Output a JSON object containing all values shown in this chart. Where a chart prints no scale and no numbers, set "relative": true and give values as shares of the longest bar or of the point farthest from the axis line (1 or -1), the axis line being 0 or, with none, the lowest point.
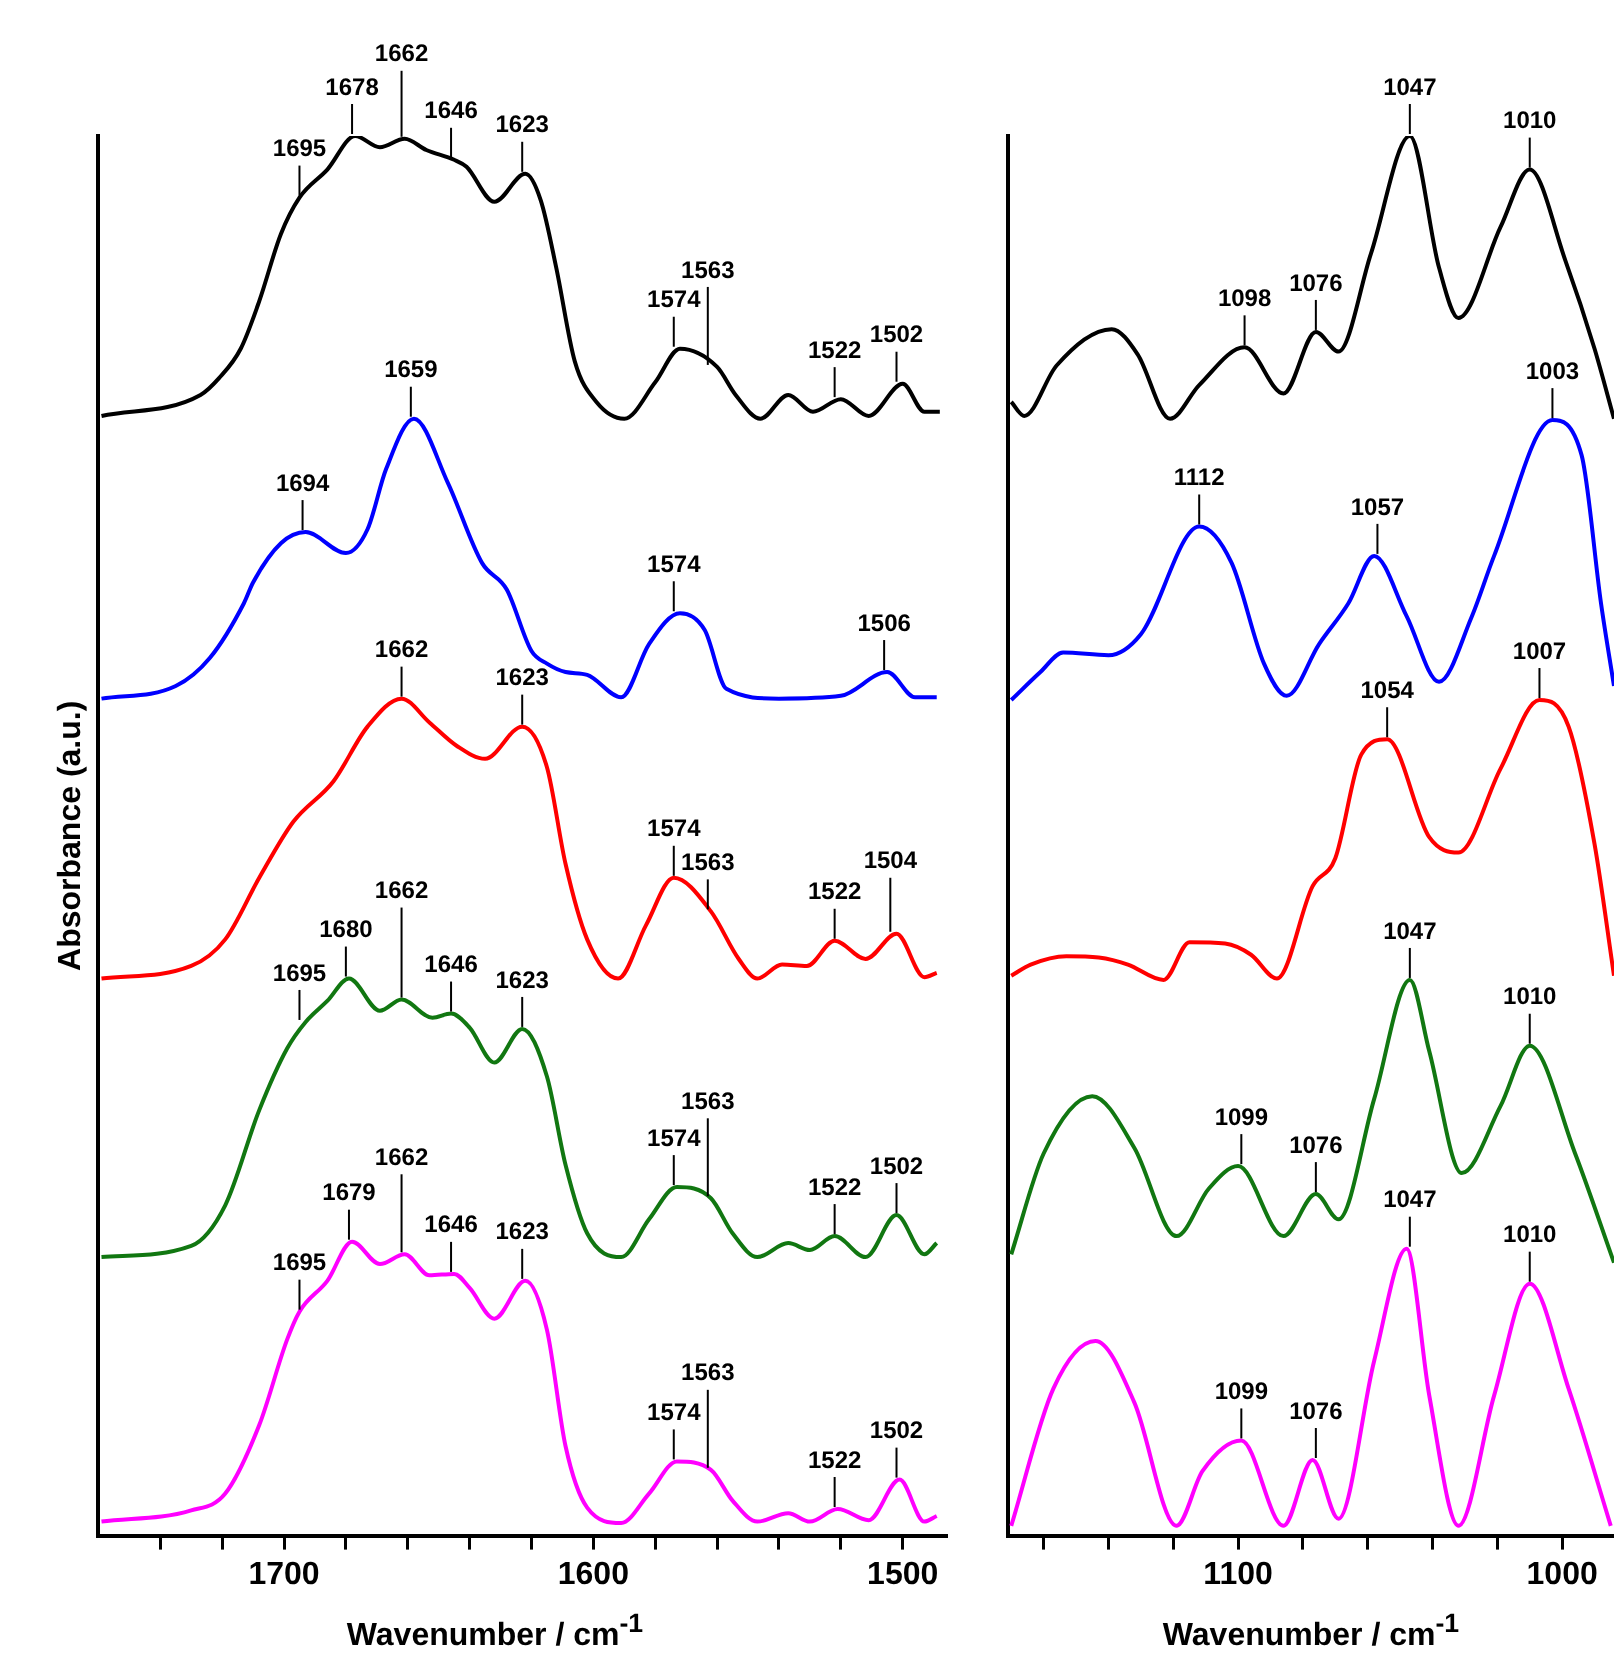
{
  "chart_data": [
    {
      "type": "line",
      "relative": true,
      "tick_labels": "x",
      "xlabel": "Wavenumber / cm$^{-1}$",
      "ylabel": "Absorbance (a.u.)",
      "xlim": [
        1760,
        1486
      ],
      "xticks": [
        {
          "value": 1740,
          "label": null
        },
        {
          "value": 1720,
          "label": null
        },
        1700,
        {
          "value": 1680,
          "label": null
        },
        {
          "value": 1660,
          "label": null
        },
        {
          "value": 1640,
          "label": null
        },
        {
          "value": 1620,
          "label": null
        },
        1600,
        {
          "value": 1580,
          "label": null
        },
        {
          "value": 1560,
          "label": null
        },
        {
          "value": 1540,
          "label": null
        },
        {
          "value": 1520,
          "label": null
        },
        1500
      ],
      "series": [
        {
          "color": "#000000",
          "x": [
            1759,
            1727,
            1721,
            1714,
            1708,
            1701,
            1695,
            1686,
            1677,
            1669,
            1661,
            1654,
            1645,
            1641,
            1632,
            1622,
            1617,
            1612,
            1606,
            1599,
            1590,
            1580,
            1572,
            1560,
            1554,
            1546,
            1537,
            1529,
            1520,
            1511,
            1500,
            1493,
            1488
          ],
          "values": [
            0.8,
            0.815,
            0.827,
            0.848,
            0.882,
            0.93,
            0.956,
            0.976,
            1.0,
            0.992,
            0.998,
            0.99,
            0.983,
            0.978,
            0.953,
            0.973,
            0.954,
            0.906,
            0.839,
            0.81,
            0.798,
            0.824,
            0.848,
            0.835,
            0.815,
            0.798,
            0.815,
            0.803,
            0.812,
            0.8,
            0.823,
            0.803,
            0.803
          ]
        },
        {
          "color": "#0000ff",
          "x": [
            1759,
            1735,
            1724,
            1713,
            1710,
            1701,
            1693,
            1680,
            1673,
            1667,
            1658,
            1647,
            1636,
            1628,
            1620,
            1615,
            1609,
            1602,
            1591,
            1582,
            1572,
            1564,
            1557,
            1540,
            1520,
            1505,
            1496,
            1489
          ],
          "values": [
            0.598,
            0.607,
            0.627,
            0.666,
            0.681,
            0.709,
            0.717,
            0.702,
            0.719,
            0.762,
            0.798,
            0.752,
            0.695,
            0.676,
            0.632,
            0.623,
            0.617,
            0.615,
            0.599,
            0.637,
            0.659,
            0.647,
            0.605,
            0.598,
            0.6,
            0.617,
            0.599,
            0.599
          ]
        },
        {
          "color": "#ff0000",
          "x": [
            1759,
            1730,
            1719,
            1708,
            1697,
            1684,
            1673,
            1662,
            1653,
            1644,
            1635,
            1623,
            1615,
            1609,
            1602,
            1592,
            1583,
            1574,
            1562,
            1553,
            1547,
            1539,
            1531,
            1522,
            1512,
            1502,
            1493,
            1489
          ],
          "values": [
            0.398,
            0.407,
            0.426,
            0.47,
            0.51,
            0.539,
            0.578,
            0.598,
            0.581,
            0.564,
            0.555,
            0.578,
            0.549,
            0.48,
            0.426,
            0.398,
            0.436,
            0.47,
            0.446,
            0.412,
            0.398,
            0.408,
            0.407,
            0.425,
            0.412,
            0.43,
            0.399,
            0.402
          ]
        },
        {
          "color": "#117711",
          "x": [
            1759,
            1730,
            1719,
            1708,
            1699,
            1693,
            1686,
            1679,
            1669,
            1662,
            1652,
            1646,
            1640,
            1632,
            1623,
            1615,
            1609,
            1602,
            1591,
            1582,
            1573,
            1562,
            1555,
            1547,
            1537,
            1530,
            1522,
            1512,
            1502,
            1493,
            1489
          ],
          "values": [
            0.199,
            0.207,
            0.236,
            0.304,
            0.348,
            0.367,
            0.382,
            0.398,
            0.375,
            0.383,
            0.37,
            0.373,
            0.363,
            0.338,
            0.362,
            0.328,
            0.265,
            0.216,
            0.199,
            0.226,
            0.249,
            0.241,
            0.216,
            0.199,
            0.209,
            0.204,
            0.214,
            0.199,
            0.229,
            0.201,
            0.209
          ]
        },
        {
          "color": "#ff00ff",
          "x": [
            1759,
            1730,
            1719,
            1708,
            1699,
            1695,
            1686,
            1678,
            1669,
            1661,
            1653,
            1645,
            1640,
            1632,
            1622,
            1615,
            1609,
            1602,
            1591,
            1582,
            1573,
            1562,
            1555,
            1547,
            1537,
            1530,
            1521,
            1511,
            1501,
            1493,
            1489
          ],
          "values": [
            0.01,
            0.018,
            0.03,
            0.079,
            0.14,
            0.16,
            0.182,
            0.21,
            0.194,
            0.201,
            0.186,
            0.187,
            0.177,
            0.155,
            0.182,
            0.147,
            0.064,
            0.02,
            0.009,
            0.03,
            0.053,
            0.047,
            0.025,
            0.01,
            0.016,
            0.01,
            0.019,
            0.011,
            0.04,
            0.01,
            0.014
          ]
        }
      ],
      "annotations": [
        {
          "text": "1695",
          "x": 1695,
          "y": 0.956
        },
        {
          "text": "1678",
          "x": 1678,
          "y": 1.0
        },
        {
          "text": "1662",
          "x": 1662,
          "y": 0.998
        },
        {
          "text": "1646",
          "x": 1646,
          "y": 0.983
        },
        {
          "text": "1623",
          "x": 1623,
          "y": 0.973
        },
        {
          "text": "1574",
          "x": 1574,
          "y": 0.848
        },
        {
          "text": "1563",
          "x": 1563,
          "y": 0.835
        },
        {
          "text": "1522",
          "x": 1522,
          "y": 0.812
        },
        {
          "text": "1502",
          "x": 1502,
          "y": 0.823
        },
        {
          "text": "1694",
          "x": 1694,
          "y": 0.717
        },
        {
          "text": "1659",
          "x": 1659,
          "y": 0.798
        },
        {
          "text": "1574",
          "x": 1574,
          "y": 0.659
        },
        {
          "text": "1506",
          "x": 1506,
          "y": 0.617
        },
        {
          "text": "1662",
          "x": 1662,
          "y": 0.598
        },
        {
          "text": "1623",
          "x": 1623,
          "y": 0.578
        },
        {
          "text": "1574",
          "x": 1574,
          "y": 0.47
        },
        {
          "text": "1563",
          "x": 1563,
          "y": 0.446
        },
        {
          "text": "1522",
          "x": 1522,
          "y": 0.425
        },
        {
          "text": "1504",
          "x": 1504,
          "y": 0.43
        },
        {
          "text": "1695",
          "x": 1695,
          "y": 0.367
        },
        {
          "text": "1680",
          "x": 1680,
          "y": 0.398
        },
        {
          "text": "1662",
          "x": 1662,
          "y": 0.383
        },
        {
          "text": "1646",
          "x": 1646,
          "y": 0.373
        },
        {
          "text": "1623",
          "x": 1623,
          "y": 0.362
        },
        {
          "text": "1574",
          "x": 1574,
          "y": 0.249
        },
        {
          "text": "1563",
          "x": 1563,
          "y": 0.241
        },
        {
          "text": "1522",
          "x": 1522,
          "y": 0.214
        },
        {
          "text": "1502",
          "x": 1502,
          "y": 0.229
        },
        {
          "text": "1695",
          "x": 1695,
          "y": 0.16
        },
        {
          "text": "1679",
          "x": 1679,
          "y": 0.21
        },
        {
          "text": "1662",
          "x": 1662,
          "y": 0.201
        },
        {
          "text": "1646",
          "x": 1646,
          "y": 0.187
        },
        {
          "text": "1623",
          "x": 1623,
          "y": 0.182
        },
        {
          "text": "1574",
          "x": 1574,
          "y": 0.053
        },
        {
          "text": "1563",
          "x": 1563,
          "y": 0.047
        },
        {
          "text": "1522",
          "x": 1522,
          "y": 0.019
        },
        {
          "text": "1502",
          "x": 1502,
          "y": 0.04
        }
      ]
    },
    {
      "type": "line",
      "relative": true,
      "tick_labels": "x",
      "xlabel": "Wavenumber / cm$^{-1}$",
      "xlim": [
        1171,
        984
      ],
      "xticks": [
        {
          "value": 1160,
          "label": null
        },
        {
          "value": 1140,
          "label": null
        },
        {
          "value": 1120,
          "label": null
        },
        1100,
        {
          "value": 1080,
          "label": null
        },
        {
          "value": 1060,
          "label": null
        },
        {
          "value": 1040,
          "label": null
        },
        {
          "value": 1020,
          "label": null
        },
        1000
      ],
      "series": [
        {
          "color": "#000000",
          "x": [
            1170,
            1166,
            1156,
            1139,
            1131,
            1121,
            1112,
            1098,
            1086,
            1076,
            1069,
            1059,
            1047,
            1038,
            1032,
            1019,
            1010,
            999,
            990,
            984
          ],
          "values": [
            0.81,
            0.8,
            0.836,
            0.862,
            0.844,
            0.798,
            0.822,
            0.849,
            0.816,
            0.86,
            0.846,
            0.916,
            1.0,
            0.906,
            0.87,
            0.935,
            0.976,
            0.911,
            0.848,
            0.798
          ]
        },
        {
          "color": "#0000ff",
          "x": [
            1170,
            1161,
            1154,
            1140,
            1130,
            1112,
            1102,
            1092,
            1085,
            1075,
            1066,
            1058,
            1048,
            1038,
            1028,
            1021,
            1003,
            994,
            988,
            984
          ],
          "values": [
            0.597,
            0.617,
            0.631,
            0.629,
            0.644,
            0.721,
            0.695,
            0.623,
            0.6,
            0.637,
            0.666,
            0.7,
            0.657,
            0.61,
            0.656,
            0.7,
            0.797,
            0.772,
            0.666,
            0.607
          ]
        },
        {
          "color": "#ff0000",
          "x": [
            1170,
            1164,
            1153,
            1143,
            1134,
            1123,
            1115,
            1104,
            1096,
            1088,
            1077,
            1070,
            1062,
            1054,
            1041,
            1032,
            1019,
            1007,
            998,
            990,
            984
          ],
          "values": [
            0.4,
            0.408,
            0.414,
            0.413,
            0.408,
            0.397,
            0.424,
            0.423,
            0.415,
            0.398,
            0.464,
            0.484,
            0.558,
            0.569,
            0.499,
            0.488,
            0.548,
            0.597,
            0.578,
            0.494,
            0.4
          ]
        },
        {
          "color": "#117711",
          "x": [
            1170,
            1160,
            1145,
            1132,
            1119,
            1109,
            1100,
            1086,
            1076,
            1069,
            1058,
            1047,
            1041,
            1031,
            1019,
            1010,
            996,
            984
          ],
          "values": [
            0.201,
            0.273,
            0.314,
            0.277,
            0.214,
            0.248,
            0.264,
            0.214,
            0.244,
            0.226,
            0.312,
            0.397,
            0.346,
            0.259,
            0.307,
            0.35,
            0.273,
            0.195
          ]
        },
        {
          "color": "#ff00ff",
          "x": [
            1170,
            1157,
            1144,
            1132,
            1119,
            1111,
            1099,
            1086,
            1077,
            1069,
            1058,
            1048,
            1041,
            1032,
            1021,
            1010,
            998,
            985
          ],
          "values": [
            0.007,
            0.105,
            0.139,
            0.095,
            0.007,
            0.046,
            0.068,
            0.007,
            0.054,
            0.012,
            0.125,
            0.205,
            0.1,
            0.007,
            0.1,
            0.18,
            0.105,
            0.007
          ]
        }
      ],
      "annotations": [
        {
          "text": "1098",
          "x": 1098,
          "y": 0.849
        },
        {
          "text": "1076",
          "x": 1076,
          "y": 0.86
        },
        {
          "text": "1047",
          "x": 1047,
          "y": 1.0
        },
        {
          "text": "1010",
          "x": 1010,
          "y": 0.976
        },
        {
          "text": "1112",
          "x": 1112,
          "y": 0.721
        },
        {
          "text": "1057",
          "x": 1057,
          "y": 0.7
        },
        {
          "text": "1003",
          "x": 1003,
          "y": 0.797
        },
        {
          "text": "1054",
          "x": 1054,
          "y": 0.569
        },
        {
          "text": "1007",
          "x": 1007,
          "y": 0.597
        },
        {
          "text": "1099",
          "x": 1099,
          "y": 0.264
        },
        {
          "text": "1076",
          "x": 1076,
          "y": 0.244
        },
        {
          "text": "1047",
          "x": 1047,
          "y": 0.397
        },
        {
          "text": "1010",
          "x": 1010,
          "y": 0.35
        },
        {
          "text": "1099",
          "x": 1099,
          "y": 0.068
        },
        {
          "text": "1076",
          "x": 1076,
          "y": 0.054
        },
        {
          "text": "1047",
          "x": 1047,
          "y": 0.205
        },
        {
          "text": "1010",
          "x": 1010,
          "y": 0.18
        }
      ]
    }
  ]
}
